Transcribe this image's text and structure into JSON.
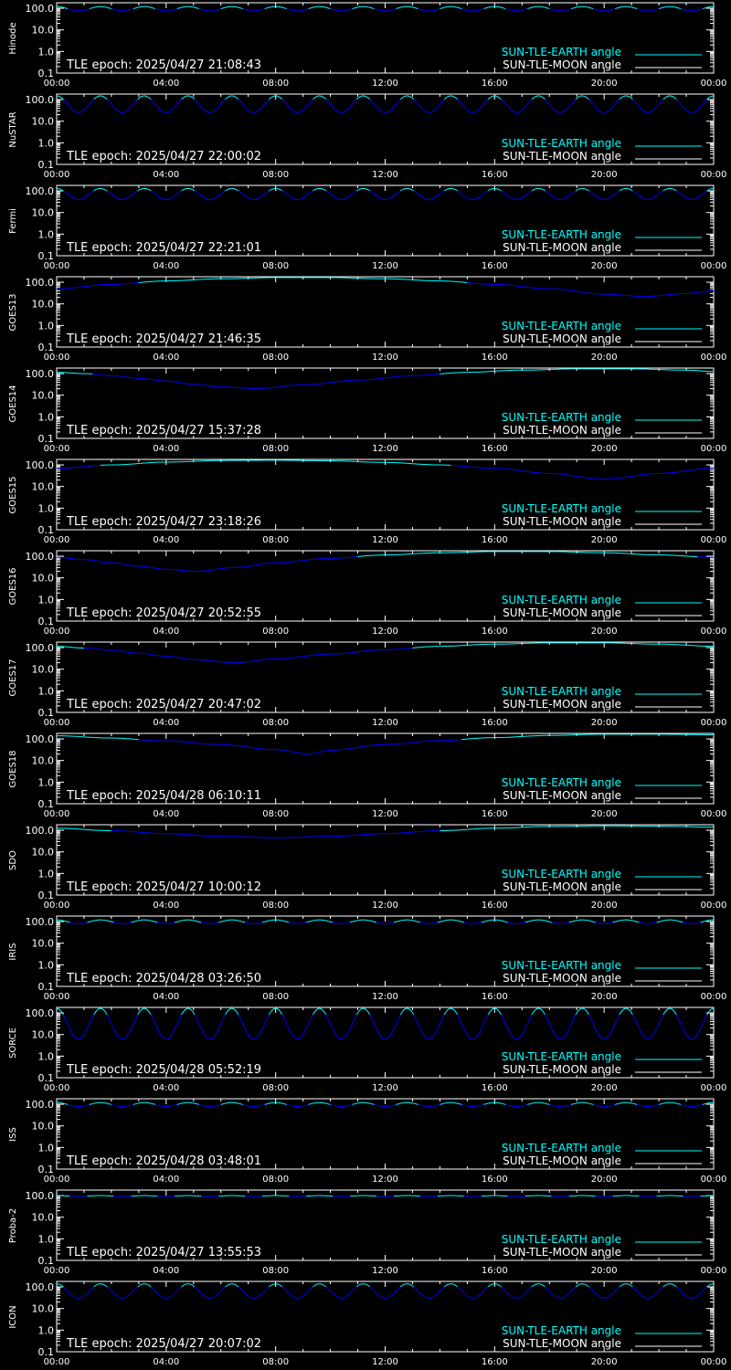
{
  "colors": {
    "background": "#000000",
    "axes": "#ffffff",
    "earth_line": "#00ffff",
    "moon_line": "#ffffff",
    "curve": "#0000ff",
    "curve_high": "#00ffff"
  },
  "legend": {
    "earth": "SUN-TLE-EARTH angle",
    "moon": "SUN-TLE-MOON angle"
  },
  "epoch_prefix": "TLE epoch: ",
  "x_tick_labels": [
    "00:00",
    "04:00",
    "08:00",
    "12:00",
    "16:00",
    "20:00",
    "00:00"
  ],
  "y_tick_labels": [
    "100.0",
    "10.0",
    "1.0",
    "0.1"
  ],
  "chart_data": [
    {
      "type": "line",
      "name": "Hinode",
      "epoch": "2025/04/27 21:08:43",
      "xlim": [
        0,
        24
      ],
      "ylim": [
        0.1,
        180
      ],
      "yscale": "log",
      "series": [
        {
          "name": "SUN-TLE-EARTH angle",
          "x": [
            0,
            0.8,
            1.6,
            2.4,
            3.2,
            4.0,
            4.8,
            5.6,
            6.4,
            7.2,
            8.0,
            8.8,
            9.6,
            10.4,
            11.2,
            12.0,
            12.8,
            13.6,
            14.4,
            15.2,
            16.0,
            16.8,
            17.6,
            18.4,
            19.2,
            20.0,
            20.8,
            21.6,
            22.4,
            23.2,
            24.0
          ],
          "y": [
            120,
            75,
            120,
            75,
            120,
            75,
            120,
            75,
            120,
            75,
            120,
            75,
            120,
            75,
            120,
            75,
            120,
            75,
            120,
            75,
            120,
            75,
            120,
            75,
            120,
            75,
            120,
            75,
            120,
            75,
            120
          ]
        }
      ]
    },
    {
      "type": "line",
      "name": "NuSTAR",
      "epoch": "2025/04/27 22:00:02",
      "xlim": [
        0,
        24
      ],
      "ylim": [
        0.1,
        180
      ],
      "yscale": "log",
      "series": [
        {
          "name": "SUN-TLE-EARTH angle",
          "x": [
            0,
            0.8,
            1.6,
            2.4,
            3.2,
            4.0,
            4.8,
            5.6,
            6.4,
            7.2,
            8.0,
            8.8,
            9.6,
            10.4,
            11.2,
            12.0,
            12.8,
            13.6,
            14.4,
            15.2,
            16.0,
            16.8,
            17.6,
            18.4,
            19.2,
            20.0,
            20.8,
            21.6,
            22.4,
            23.2,
            24.0
          ],
          "y": [
            150,
            25,
            150,
            25,
            150,
            25,
            150,
            25,
            150,
            25,
            150,
            25,
            150,
            25,
            150,
            25,
            150,
            25,
            150,
            25,
            150,
            25,
            150,
            25,
            150,
            25,
            150,
            25,
            150,
            25,
            150
          ]
        }
      ]
    },
    {
      "type": "line",
      "name": "Fermi",
      "epoch": "2025/04/27 22:21:01",
      "xlim": [
        0,
        24
      ],
      "ylim": [
        0.1,
        180
      ],
      "yscale": "log",
      "series": [
        {
          "name": "SUN-TLE-EARTH angle",
          "x": [
            0,
            0.8,
            1.6,
            2.4,
            3.2,
            4.0,
            4.8,
            5.6,
            6.4,
            7.2,
            8.0,
            8.8,
            9.6,
            10.4,
            11.2,
            12.0,
            12.8,
            13.6,
            14.4,
            15.2,
            16.0,
            16.8,
            17.6,
            18.4,
            19.2,
            20.0,
            20.8,
            21.6,
            22.4,
            23.2,
            24.0
          ],
          "y": [
            130,
            40,
            130,
            40,
            130,
            40,
            130,
            40,
            130,
            40,
            130,
            40,
            130,
            40,
            130,
            40,
            130,
            40,
            130,
            40,
            130,
            40,
            130,
            40,
            130,
            40,
            130,
            40,
            130,
            40,
            130
          ]
        }
      ]
    },
    {
      "type": "line",
      "name": "GOES13",
      "epoch": "2025/04/27 21:46:35",
      "xlim": [
        0,
        24
      ],
      "ylim": [
        0.1,
        180
      ],
      "yscale": "log",
      "series": [
        {
          "name": "SUN-TLE-EARTH angle",
          "x": [
            0,
            2,
            4,
            6,
            8,
            10,
            12,
            14,
            16,
            18,
            20,
            21.5,
            23,
            24
          ],
          "y": [
            50,
            80,
            115,
            145,
            165,
            165,
            145,
            115,
            80,
            50,
            28,
            22,
            30,
            40
          ]
        }
      ]
    },
    {
      "type": "line",
      "name": "GOES14",
      "epoch": "2025/04/27 15:37:28",
      "xlim": [
        0,
        24
      ],
      "ylim": [
        0.1,
        180
      ],
      "yscale": "log",
      "series": [
        {
          "name": "SUN-TLE-EARTH angle",
          "x": [
            0,
            1,
            2,
            3,
            4,
            5,
            6,
            7.3,
            9,
            11,
            13,
            15,
            17,
            19,
            21,
            23,
            24
          ],
          "y": [
            115,
            100,
            80,
            60,
            45,
            32,
            24,
            20,
            30,
            50,
            80,
            115,
            145,
            165,
            165,
            145,
            125
          ]
        }
      ]
    },
    {
      "type": "line",
      "name": "GOES15",
      "epoch": "2025/04/27 23:18:26",
      "xlim": [
        0,
        24
      ],
      "ylim": [
        0.1,
        180
      ],
      "yscale": "log",
      "series": [
        {
          "name": "SUN-TLE-EARTH angle",
          "x": [
            0,
            2,
            4,
            6,
            8,
            10,
            12,
            14,
            16,
            18,
            20,
            22,
            24
          ],
          "y": [
            70,
            100,
            135,
            160,
            165,
            155,
            130,
            100,
            70,
            40,
            22,
            40,
            70
          ]
        }
      ]
    },
    {
      "type": "line",
      "name": "GOES16",
      "epoch": "2025/04/27 20:52:55",
      "xlim": [
        0,
        24
      ],
      "ylim": [
        0.1,
        180
      ],
      "yscale": "log",
      "series": [
        {
          "name": "SUN-TLE-EARTH angle",
          "x": [
            0,
            1,
            2,
            3,
            4,
            5.1,
            6.5,
            8,
            10,
            12,
            14,
            16,
            18,
            20,
            22,
            24
          ],
          "y": [
            90,
            70,
            50,
            35,
            25,
            20,
            30,
            50,
            80,
            115,
            145,
            165,
            165,
            145,
            115,
            90
          ]
        }
      ]
    },
    {
      "type": "line",
      "name": "GOES17",
      "epoch": "2025/04/27 20:47:02",
      "xlim": [
        0,
        24
      ],
      "ylim": [
        0.1,
        180
      ],
      "yscale": "log",
      "series": [
        {
          "name": "SUN-TLE-EARTH angle",
          "x": [
            0,
            1,
            2,
            3,
            4,
            5,
            6.5,
            8,
            10,
            12,
            14,
            16,
            18,
            20,
            22,
            24
          ],
          "y": [
            115,
            95,
            75,
            55,
            40,
            28,
            20,
            30,
            50,
            80,
            115,
            145,
            165,
            165,
            145,
            115
          ]
        }
      ]
    },
    {
      "type": "line",
      "name": "GOES18",
      "epoch": "2025/04/28 06:10:11",
      "xlim": [
        0,
        24
      ],
      "ylim": [
        0.1,
        180
      ],
      "yscale": "log",
      "series": [
        {
          "name": "SUN-TLE-EARTH angle",
          "x": [
            0,
            2,
            4,
            6,
            8,
            9.2,
            10,
            12,
            14,
            16,
            18,
            20,
            22,
            24
          ],
          "y": [
            140,
            110,
            80,
            55,
            32,
            20,
            30,
            55,
            85,
            115,
            145,
            165,
            165,
            155
          ]
        }
      ]
    },
    {
      "type": "line",
      "name": "SDO",
      "epoch": "2025/04/27 10:00:12",
      "xlim": [
        0,
        24
      ],
      "ylim": [
        0.1,
        180
      ],
      "yscale": "log",
      "series": [
        {
          "name": "SUN-TLE-EARTH angle",
          "x": [
            0,
            2,
            4,
            6,
            8,
            10,
            12,
            14,
            16,
            18,
            20,
            22,
            24
          ],
          "y": [
            125,
            95,
            70,
            52,
            45,
            52,
            70,
            95,
            125,
            150,
            160,
            155,
            140
          ]
        }
      ]
    },
    {
      "type": "line",
      "name": "IRIS",
      "epoch": "2025/04/28 03:26:50",
      "xlim": [
        0,
        24
      ],
      "ylim": [
        0.1,
        180
      ],
      "yscale": "log",
      "series": [
        {
          "name": "SUN-TLE-EARTH angle",
          "x": [
            0,
            0.8,
            1.6,
            2.4,
            3.2,
            4.0,
            4.8,
            5.6,
            6.4,
            7.2,
            8.0,
            8.8,
            9.6,
            10.4,
            11.2,
            12.0,
            12.8,
            13.6,
            14.4,
            15.2,
            16.0,
            16.8,
            17.6,
            18.4,
            19.2,
            20.0,
            20.8,
            21.6,
            22.4,
            23.2,
            24.0
          ],
          "y": [
            120,
            80,
            120,
            80,
            120,
            80,
            120,
            80,
            120,
            80,
            120,
            80,
            120,
            80,
            120,
            80,
            120,
            80,
            120,
            80,
            120,
            80,
            120,
            80,
            120,
            80,
            120,
            80,
            120,
            80,
            120
          ]
        }
      ]
    },
    {
      "type": "line",
      "name": "SORCE",
      "epoch": "2025/04/28 05:52:19",
      "xlim": [
        0,
        24
      ],
      "ylim": [
        0.1,
        180
      ],
      "yscale": "log",
      "series": [
        {
          "name": "SUN-TLE-EARTH angle",
          "x": [
            0,
            0.8,
            1.6,
            2.4,
            3.2,
            4.0,
            4.8,
            5.6,
            6.4,
            7.2,
            8.0,
            8.8,
            9.6,
            10.4,
            11.2,
            12.0,
            12.8,
            13.6,
            14.4,
            15.2,
            16.0,
            16.8,
            17.6,
            18.4,
            19.2,
            20.0,
            20.8,
            21.6,
            22.4,
            23.2,
            24.0
          ],
          "y": [
            165,
            6,
            165,
            6,
            165,
            6,
            165,
            6,
            165,
            6,
            165,
            6,
            165,
            6,
            165,
            6,
            165,
            6,
            165,
            6,
            165,
            6,
            165,
            6,
            165,
            6,
            165,
            6,
            165,
            6,
            165
          ]
        }
      ]
    },
    {
      "type": "line",
      "name": "ISS",
      "epoch": "2025/04/28 03:48:01",
      "xlim": [
        0,
        24
      ],
      "ylim": [
        0.1,
        180
      ],
      "yscale": "log",
      "series": [
        {
          "name": "SUN-TLE-EARTH angle",
          "x": [
            0,
            0.8,
            1.6,
            2.4,
            3.2,
            4.0,
            4.8,
            5.6,
            6.4,
            7.2,
            8.0,
            8.8,
            9.6,
            10.4,
            11.2,
            12.0,
            12.8,
            13.6,
            14.4,
            15.2,
            16.0,
            16.8,
            17.6,
            18.4,
            19.2,
            20.0,
            20.8,
            21.6,
            22.4,
            23.2,
            24.0
          ],
          "y": [
            120,
            78,
            120,
            78,
            120,
            78,
            120,
            78,
            120,
            78,
            120,
            78,
            120,
            78,
            120,
            78,
            120,
            78,
            120,
            78,
            120,
            78,
            120,
            78,
            120,
            78,
            120,
            78,
            120,
            78,
            120
          ]
        }
      ]
    },
    {
      "type": "line",
      "name": "Proba-2",
      "epoch": "2025/04/27 13:55:53",
      "xlim": [
        0,
        24
      ],
      "ylim": [
        0.1,
        180
      ],
      "yscale": "log",
      "series": [
        {
          "name": "SUN-TLE-EARTH angle",
          "x": [
            0,
            0.8,
            1.6,
            2.4,
            3.2,
            4.0,
            4.8,
            5.6,
            6.4,
            7.2,
            8.0,
            8.8,
            9.6,
            10.4,
            11.2,
            12.0,
            12.8,
            13.6,
            14.4,
            15.2,
            16.0,
            16.8,
            17.6,
            18.4,
            19.2,
            20.0,
            20.8,
            21.6,
            22.4,
            23.2,
            24.0
          ],
          "y": [
            100,
            92,
            100,
            92,
            100,
            92,
            100,
            92,
            100,
            92,
            100,
            92,
            100,
            92,
            100,
            92,
            100,
            92,
            100,
            92,
            100,
            92,
            100,
            92,
            100,
            92,
            100,
            92,
            100,
            92,
            100
          ]
        }
      ]
    },
    {
      "type": "line",
      "name": "ICON",
      "epoch": "2025/04/27 20:07:02",
      "xlim": [
        0,
        24
      ],
      "ylim": [
        0.1,
        180
      ],
      "yscale": "log",
      "series": [
        {
          "name": "SUN-TLE-EARTH angle",
          "x": [
            0,
            0.8,
            1.6,
            2.4,
            3.2,
            4.0,
            4.8,
            5.6,
            6.4,
            7.2,
            8.0,
            8.8,
            9.6,
            10.4,
            11.2,
            12.0,
            12.8,
            13.6,
            14.4,
            15.2,
            16.0,
            16.8,
            17.6,
            18.4,
            19.2,
            20.0,
            20.8,
            21.6,
            22.4,
            23.2,
            24.0
          ],
          "y": [
            140,
            30,
            140,
            30,
            140,
            30,
            140,
            30,
            140,
            30,
            140,
            30,
            140,
            30,
            140,
            30,
            140,
            30,
            140,
            30,
            140,
            30,
            140,
            30,
            140,
            30,
            140,
            30,
            140,
            30,
            140
          ]
        }
      ]
    }
  ]
}
